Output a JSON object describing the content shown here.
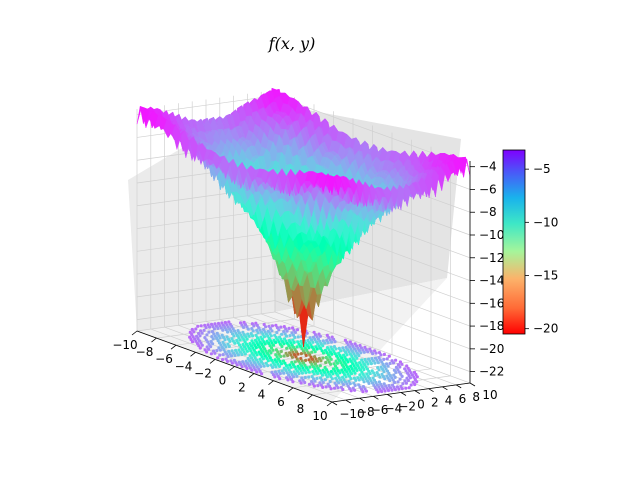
{
  "chart_data": {
    "type": "surface3d",
    "title": "f(x, y)",
    "x_range": [
      -10,
      10
    ],
    "y_range": [
      -10,
      10
    ],
    "z_range": [
      -23,
      -3.5
    ],
    "x_ticks": [
      "−10",
      "−8",
      "−6",
      "−4",
      "−2",
      "0",
      "2",
      "4",
      "6",
      "8",
      "10"
    ],
    "y_ticks": [
      "−10",
      "−8",
      "−6",
      "−4",
      "−2",
      "0",
      "2",
      "4",
      "6",
      "8",
      "10"
    ],
    "z_ticks": [
      "−4",
      "−6",
      "−8",
      "−10",
      "−12",
      "−14",
      "−16",
      "−18",
      "−20",
      "−22"
    ],
    "colorbar": {
      "colormap": "rainbow",
      "range": [
        -20.5,
        -3.2
      ],
      "ticks": [
        "−5",
        "−10",
        "−15",
        "−20"
      ],
      "tick_values": [
        -5,
        -10,
        -15,
        -20
      ]
    },
    "grid": true,
    "contour_projection": "bottom",
    "colors": {
      "low": "#ff0000",
      "high": "#7f00ff"
    }
  }
}
